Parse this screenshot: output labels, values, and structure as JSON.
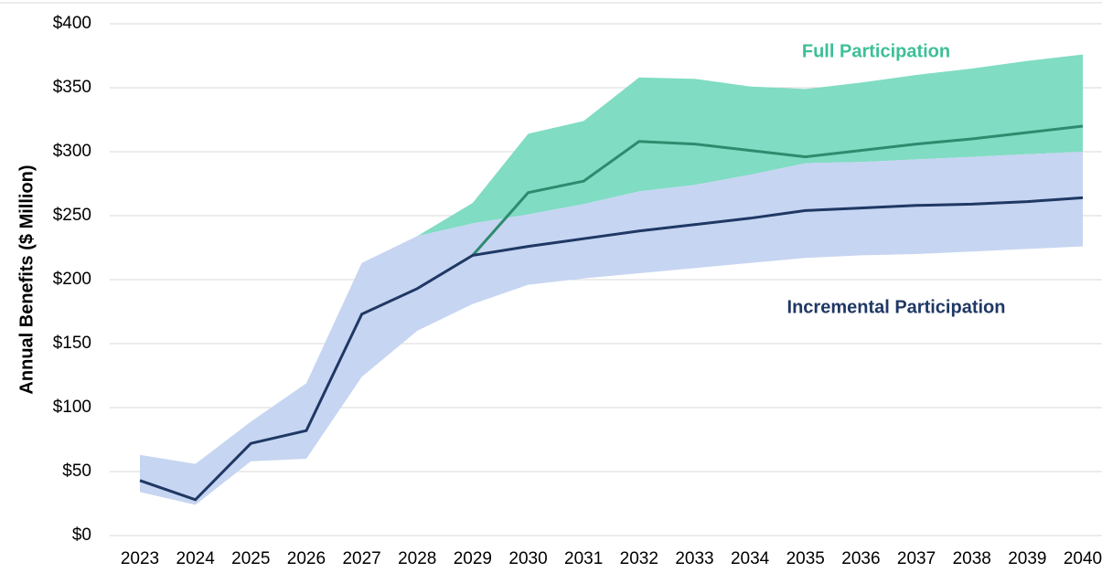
{
  "chart_data": {
    "type": "band-line",
    "y_label": "Annual Benefits ($ Million)",
    "categories": [
      "2023",
      "2024",
      "2025",
      "2026",
      "2027",
      "2028",
      "2029",
      "2030",
      "2031",
      "2032",
      "2033",
      "2034",
      "2035",
      "2036",
      "2037",
      "2038",
      "2039",
      "2040"
    ],
    "series": [
      {
        "name": "Full Participation",
        "color": "#2e8b6e",
        "band_color": "#80dcc3",
        "values": [
          null,
          null,
          null,
          null,
          null,
          null,
          219,
          268,
          277,
          308,
          306,
          301,
          296,
          301,
          306,
          310,
          315,
          320
        ],
        "upper": [
          null,
          null,
          null,
          null,
          null,
          234,
          260,
          314,
          324,
          358,
          357,
          351,
          349,
          354,
          360,
          365,
          371,
          376
        ],
        "lower": [
          null,
          null,
          null,
          null,
          null,
          234,
          244,
          251,
          259,
          269,
          274,
          282,
          291,
          292,
          294,
          296,
          298,
          300
        ]
      },
      {
        "name": "Incremental Participation",
        "color": "#1f3864",
        "band_color": "#c6d5f1",
        "values": [
          43,
          28,
          72,
          82,
          173,
          193,
          219,
          226,
          232,
          238,
          243,
          248,
          254,
          256,
          258,
          259,
          261,
          264
        ],
        "upper": [
          63,
          56,
          89,
          119,
          213,
          234,
          244,
          251,
          259,
          269,
          274,
          282,
          291,
          292,
          294,
          296,
          298,
          300
        ],
        "lower": [
          34,
          24,
          58,
          60,
          124,
          160,
          181,
          196,
          201,
          205,
          209,
          213,
          217,
          219,
          220,
          222,
          224,
          226
        ]
      }
    ],
    "ylim": [
      0,
      400
    ],
    "yticks": [
      {
        "value": 0,
        "label": "$0"
      },
      {
        "value": 50,
        "label": "$50"
      },
      {
        "value": 100,
        "label": "$100"
      },
      {
        "value": 150,
        "label": "$150"
      },
      {
        "value": 200,
        "label": "$200"
      },
      {
        "value": 250,
        "label": "$250"
      },
      {
        "value": 300,
        "label": "$300"
      },
      {
        "value": 350,
        "label": "$350"
      },
      {
        "value": 400,
        "label": "$400"
      }
    ],
    "grid": true
  }
}
